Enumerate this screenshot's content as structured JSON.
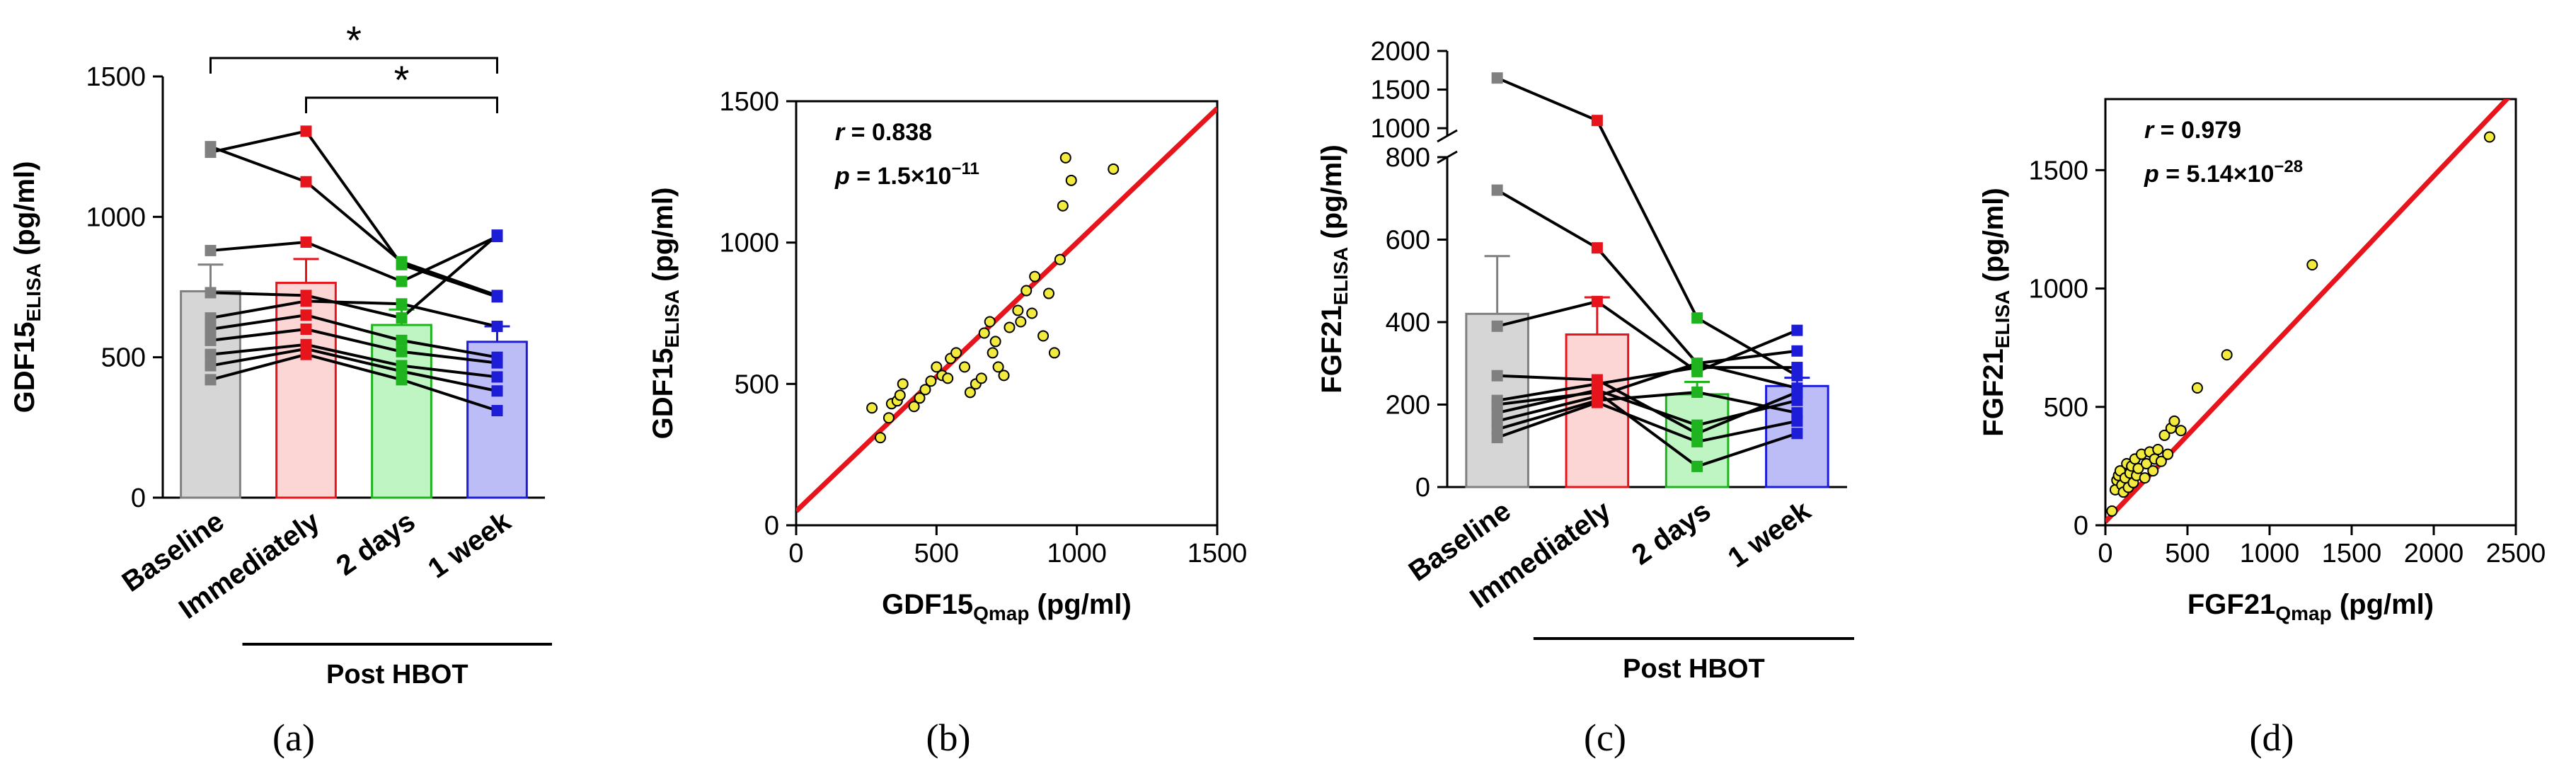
{
  "figure": {
    "panels": [
      {
        "letter": "(a)",
        "chart": 0
      },
      {
        "letter": "(b)",
        "chart": 1
      },
      {
        "letter": "(c)",
        "chart": 2
      },
      {
        "letter": "(d)",
        "chart": 3
      }
    ],
    "group_label": "Post  HBOT",
    "colors": {
      "baseline": "#808080",
      "immediately": "#e8141c",
      "two_days": "#1fb41f",
      "one_week": "#1d1dd8",
      "regression": "#e8141c",
      "scatter_fill": "#f2ea3c"
    }
  },
  "chart_data": [
    {
      "type": "bar",
      "title": "",
      "ylabel": "GDF15",
      "ylabel_sub": "ELISA",
      "ylabel_unit": " (pg/ml)",
      "categories": [
        "Baseline",
        "Immediately",
        "2 days",
        "1 week"
      ],
      "means": [
        735,
        765,
        615,
        555
      ],
      "errors": [
        95,
        85,
        55,
        55
      ],
      "subjects": [
        [
          1230,
          1305,
          830,
          715
        ],
        [
          1250,
          1125,
          840,
          720
        ],
        [
          880,
          910,
          770,
          930
        ],
        [
          730,
          720,
          640,
          935
        ],
        [
          640,
          700,
          690,
          610
        ],
        [
          600,
          650,
          560,
          500
        ],
        [
          560,
          600,
          520,
          480
        ],
        [
          510,
          545,
          470,
          430
        ],
        [
          470,
          530,
          450,
          380
        ],
        [
          420,
          510,
          420,
          310
        ]
      ],
      "ylim": [
        0,
        1500
      ],
      "yticks": [
        0,
        500,
        1000,
        1500
      ],
      "significance": [
        {
          "from": 0,
          "to": 3,
          "label": "*"
        },
        {
          "from": 1,
          "to": 3,
          "label": "*"
        }
      ]
    },
    {
      "type": "scatter",
      "xlabel": "GDF15",
      "xlabel_sub": "Qmap",
      "xlabel_unit": " (pg/ml)",
      "ylabel": "GDF15",
      "ylabel_sub": "ELISA",
      "ylabel_unit": " (pg/ml)",
      "xlim": [
        0,
        1500
      ],
      "ylim": [
        0,
        1500
      ],
      "xticks": [
        0,
        500,
        1000,
        1500
      ],
      "yticks": [
        0,
        500,
        1000,
        1500
      ],
      "annotations": {
        "r": "0.838",
        "p_mant": "1.5",
        "p_exp": "−11"
      },
      "fit": {
        "intercept": 50,
        "slope": 0.95
      },
      "points": [
        [
          270,
          415
        ],
        [
          300,
          310
        ],
        [
          330,
          380
        ],
        [
          340,
          430
        ],
        [
          360,
          440
        ],
        [
          370,
          460
        ],
        [
          380,
          500
        ],
        [
          420,
          420
        ],
        [
          440,
          450
        ],
        [
          460,
          480
        ],
        [
          480,
          510
        ],
        [
          500,
          560
        ],
        [
          520,
          530
        ],
        [
          540,
          520
        ],
        [
          550,
          590
        ],
        [
          570,
          610
        ],
        [
          600,
          560
        ],
        [
          620,
          470
        ],
        [
          640,
          500
        ],
        [
          660,
          520
        ],
        [
          670,
          680
        ],
        [
          690,
          720
        ],
        [
          700,
          610
        ],
        [
          710,
          650
        ],
        [
          720,
          560
        ],
        [
          740,
          530
        ],
        [
          760,
          700
        ],
        [
          790,
          760
        ],
        [
          800,
          720
        ],
        [
          820,
          830
        ],
        [
          840,
          750
        ],
        [
          850,
          880
        ],
        [
          880,
          670
        ],
        [
          900,
          820
        ],
        [
          920,
          610
        ],
        [
          940,
          940
        ],
        [
          950,
          1130
        ],
        [
          960,
          1300
        ],
        [
          980,
          1220
        ],
        [
          1130,
          1260
        ]
      ]
    },
    {
      "type": "bar",
      "title": "",
      "ylabel": "FGF21",
      "ylabel_sub": "ELISA",
      "ylabel_unit": " (pg/ml)",
      "categories": [
        "Baseline",
        "Immediately",
        "2 days",
        "1 week"
      ],
      "means": [
        420,
        370,
        225,
        245
      ],
      "errors": [
        140,
        90,
        30,
        20
      ],
      "subjects": [
        [
          1650,
          1100,
          410,
          270
        ],
        [
          720,
          580,
          300,
          330
        ],
        [
          390,
          450,
          280,
          380
        ],
        [
          270,
          260,
          130,
          230
        ],
        [
          210,
          250,
          290,
          290
        ],
        [
          180,
          235,
          150,
          210
        ],
        [
          160,
          220,
          300,
          240
        ],
        [
          140,
          210,
          230,
          180
        ],
        [
          120,
          205,
          110,
          160
        ],
        [
          200,
          230,
          50,
          130
        ]
      ],
      "ylim": [
        0,
        2000
      ],
      "break": {
        "lower_max": 800,
        "upper_min": 800
      },
      "yticks_lower": [
        0,
        200,
        400,
        600,
        800
      ],
      "yticks_upper": [
        1000,
        1500,
        2000
      ]
    },
    {
      "type": "scatter",
      "xlabel": "FGF21",
      "xlabel_sub": "Qmap",
      "xlabel_unit": " (pg/ml)",
      "ylabel": "FGF21",
      "ylabel_sub": "ELISA",
      "ylabel_unit": " (pg/ml)",
      "xlim": [
        0,
        2500
      ],
      "ylim": [
        0,
        1800
      ],
      "xticks": [
        0,
        500,
        1000,
        1500,
        2000,
        2500
      ],
      "yticks": [
        0,
        500,
        1000,
        1500
      ],
      "annotations": {
        "r": "0.979",
        "p_mant": "5.14",
        "p_exp": "−28"
      },
      "fit": {
        "intercept": 15,
        "slope": 0.73
      },
      "points": [
        [
          40,
          60
        ],
        [
          60,
          150
        ],
        [
          70,
          190
        ],
        [
          80,
          210
        ],
        [
          90,
          230
        ],
        [
          100,
          170
        ],
        [
          110,
          140
        ],
        [
          120,
          200
        ],
        [
          130,
          260
        ],
        [
          140,
          160
        ],
        [
          150,
          220
        ],
        [
          160,
          250
        ],
        [
          170,
          180
        ],
        [
          180,
          280
        ],
        [
          190,
          210
        ],
        [
          200,
          240
        ],
        [
          220,
          300
        ],
        [
          240,
          200
        ],
        [
          250,
          260
        ],
        [
          270,
          310
        ],
        [
          290,
          230
        ],
        [
          300,
          280
        ],
        [
          320,
          320
        ],
        [
          340,
          270
        ],
        [
          360,
          380
        ],
        [
          380,
          300
        ],
        [
          400,
          410
        ],
        [
          420,
          440
        ],
        [
          460,
          400
        ],
        [
          560,
          580
        ],
        [
          740,
          720
        ],
        [
          1260,
          1100
        ],
        [
          2340,
          1640
        ]
      ]
    }
  ]
}
